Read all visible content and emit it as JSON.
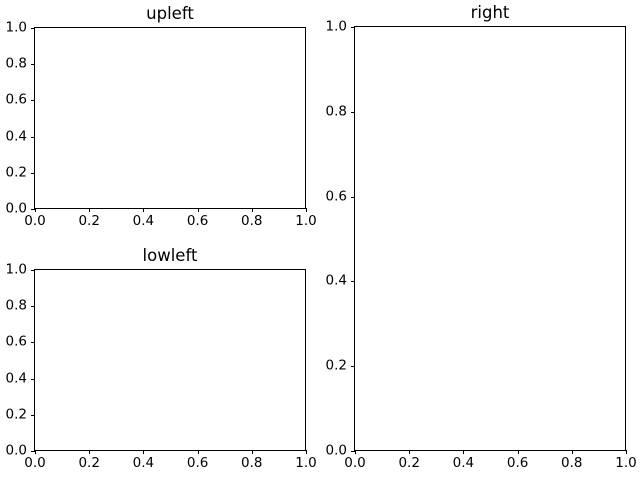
{
  "figure": {
    "background_color": "#ffffff",
    "axis_color": "#000000",
    "text_color": "#000000"
  },
  "chart_data": [
    {
      "id": "upleft",
      "type": "line",
      "title": "upleft",
      "xlabel": "",
      "ylabel": "",
      "xlim": [
        0.0,
        1.0
      ],
      "ylim": [
        0.0,
        1.0
      ],
      "x_ticks": [
        "0.0",
        "0.2",
        "0.4",
        "0.6",
        "0.8",
        "1.0"
      ],
      "y_ticks": [
        "0.0",
        "0.2",
        "0.4",
        "0.6",
        "0.8",
        "1.0"
      ],
      "series": [],
      "grid": false,
      "legend": null
    },
    {
      "id": "lowleft",
      "type": "line",
      "title": "lowleft",
      "xlabel": "",
      "ylabel": "",
      "xlim": [
        0.0,
        1.0
      ],
      "ylim": [
        0.0,
        1.0
      ],
      "x_ticks": [
        "0.0",
        "0.2",
        "0.4",
        "0.6",
        "0.8",
        "1.0"
      ],
      "y_ticks": [
        "0.0",
        "0.2",
        "0.4",
        "0.6",
        "0.8",
        "1.0"
      ],
      "series": [],
      "grid": false,
      "legend": null
    },
    {
      "id": "right",
      "type": "line",
      "title": "right",
      "xlabel": "",
      "ylabel": "",
      "xlim": [
        0.0,
        1.0
      ],
      "ylim": [
        0.0,
        1.0
      ],
      "x_ticks": [
        "0.0",
        "0.2",
        "0.4",
        "0.6",
        "0.8",
        "1.0"
      ],
      "y_ticks": [
        "0.0",
        "0.2",
        "0.4",
        "0.6",
        "0.8",
        "1.0"
      ],
      "series": [],
      "grid": false,
      "legend": null
    }
  ]
}
